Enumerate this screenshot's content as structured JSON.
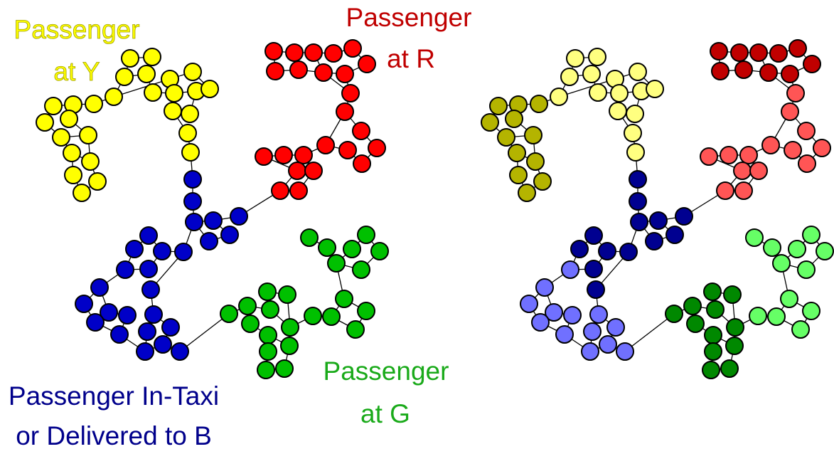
{
  "labels": {
    "yellow": [
      "Passenger",
      "at Y"
    ],
    "red": [
      "Passenger",
      "at R"
    ],
    "green": [
      "Passenger",
      "at G"
    ],
    "blue": [
      "Passenger In-Taxi",
      "or Delivered to B"
    ]
  },
  "colors": {
    "label_yellow": "#ffff00",
    "label_yellow_outline": "#a0a000",
    "label_red": "#c00000",
    "label_green": "#1aaa1a",
    "label_blue": "#00008b",
    "left_graph": {
      "yellow": "#ffff00",
      "red": "#ff0000",
      "green": "#00c000",
      "blue": "#0000c8"
    },
    "right_graph": {
      "yellow_light": "#ffff80",
      "yellow_dark": "#b4b400",
      "red_light": "#ff5555",
      "red_dark": "#c00000",
      "green_light": "#66ff66",
      "green_dark": "#008800",
      "blue_light": "#7070ff",
      "blue_dark": "#000090"
    },
    "node_stroke": "#000000",
    "edge": "#000000"
  },
  "graphs": [
    "left-state-graph",
    "right-state-graph"
  ]
}
